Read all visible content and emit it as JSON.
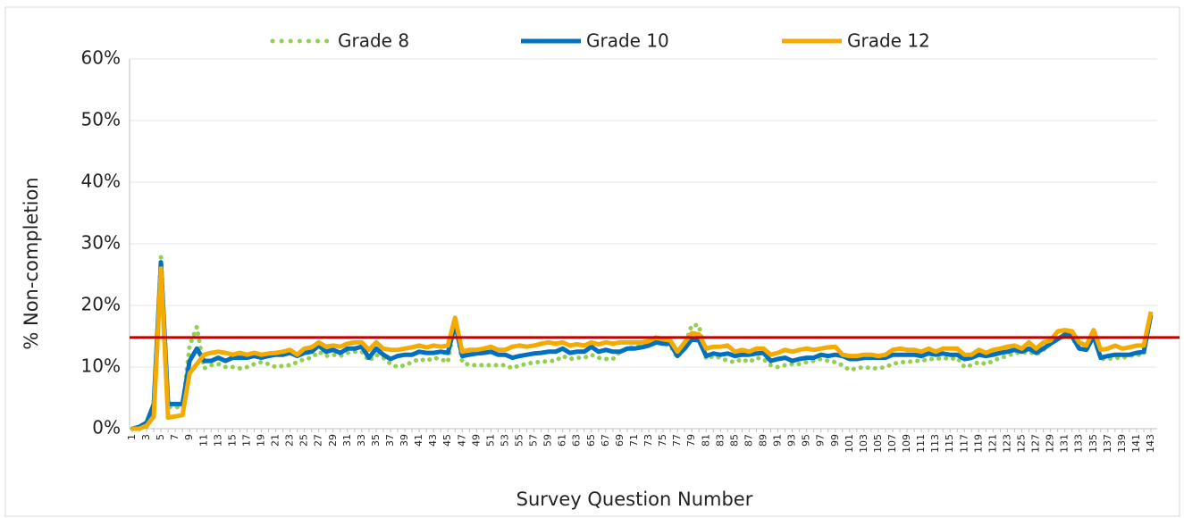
{
  "chart_data": {
    "type": "line",
    "x_label": "Survey Question Number",
    "y_label": "% Non-completion",
    "categories": [
      "1",
      null,
      "3",
      null,
      "5",
      null,
      "7",
      null,
      "9",
      null,
      "11",
      null,
      "13",
      null,
      "15",
      null,
      "17",
      null,
      "19",
      null,
      "21",
      null,
      "23",
      null,
      "25",
      null,
      "27",
      null,
      "29",
      null,
      "31",
      null,
      "33",
      null,
      "35",
      null,
      "37",
      null,
      "39",
      null,
      "41",
      null,
      "43",
      null,
      "45",
      null,
      "47",
      null,
      "49",
      null,
      "51",
      null,
      "53",
      null,
      "55",
      null,
      "57",
      null,
      "59",
      null,
      "61",
      null,
      "63",
      null,
      "65",
      null,
      "67",
      null,
      "69",
      null,
      "71",
      null,
      "73",
      null,
      "75",
      null,
      "77",
      null,
      "79",
      null,
      "81",
      null,
      "83",
      null,
      "85",
      null,
      "87",
      null,
      "89",
      null,
      "91",
      null,
      "93",
      null,
      "95",
      null,
      "97",
      null,
      "99",
      null,
      "101",
      null,
      "103",
      null,
      "105",
      null,
      "107",
      null,
      "109",
      null,
      "111",
      null,
      "113",
      null,
      "115",
      null,
      "117",
      null,
      "119",
      null,
      "121",
      null,
      "123",
      null,
      "125",
      null,
      "127",
      null,
      "129",
      null,
      "131",
      null,
      "133",
      null,
      "135",
      null,
      "137",
      null,
      "139",
      null,
      "141",
      null,
      "143"
    ],
    "series": [
      {
        "name": "Grade 8",
        "color": "#92d050",
        "dash": "dotted",
        "values": [
          0,
          0,
          0.3,
          3,
          28,
          3.5,
          3.5,
          3.5,
          13.5,
          16.5,
          9.8,
          10.3,
          10.5,
          10,
          10,
          9.8,
          10,
          10.5,
          10.8,
          10.5,
          10,
          10.2,
          10.3,
          10.8,
          11.3,
          11.5,
          12.5,
          11.8,
          12,
          11.8,
          12.3,
          12.5,
          12.5,
          11,
          12,
          11.5,
          10.5,
          10,
          10.3,
          10.8,
          11.3,
          11,
          11.5,
          11.3,
          10.8,
          17.5,
          10.8,
          10.3,
          10.3,
          10.3,
          10.3,
          10.3,
          10.3,
          9.8,
          10.3,
          10.5,
          10.8,
          10.8,
          11,
          11,
          11.8,
          11.3,
          11.5,
          11.5,
          12,
          11.5,
          11.3,
          11.3,
          12.5,
          13,
          13.3,
          13.5,
          13.5,
          14,
          13.8,
          13.5,
          11.5,
          13.5,
          16.8,
          16.8,
          11.3,
          11.8,
          11.5,
          11,
          10.8,
          11.3,
          10.8,
          11.5,
          11.3,
          10.3,
          10,
          10.3,
          10.5,
          10.5,
          10.8,
          11,
          11.3,
          11,
          10.8,
          10.3,
          9.5,
          9.8,
          10,
          9.8,
          9.8,
          10,
          10.5,
          10.8,
          10.8,
          11,
          11,
          11.3,
          11.3,
          11.5,
          11.3,
          11.5,
          10,
          10.3,
          10.8,
          10.5,
          11,
          11.5,
          11.8,
          12.3,
          12.3,
          12.5,
          12,
          12.8,
          13.8,
          14.5,
          15,
          14.8,
          13,
          12.8,
          15,
          11.3,
          11.3,
          11.5,
          11.5,
          11.8,
          12,
          12,
          18.5
        ]
      },
      {
        "name": "Grade 10",
        "color": "#0070c0",
        "dash": "solid",
        "values": [
          0,
          0.3,
          1,
          4,
          27,
          4,
          4,
          4,
          11,
          13,
          11,
          11,
          11.5,
          11,
          11.5,
          11.5,
          11.5,
          11.8,
          11.5,
          11.8,
          12,
          12,
          12.3,
          11.8,
          12.3,
          12.5,
          13.5,
          12.5,
          12.8,
          12.3,
          13,
          13,
          13.3,
          11.5,
          13,
          12,
          11.3,
          11.8,
          12,
          12,
          12.5,
          12.3,
          12.3,
          12.5,
          12.3,
          17,
          11.8,
          12,
          12.2,
          12.3,
          12.5,
          12,
          12,
          11.5,
          11.8,
          12,
          12.2,
          12.3,
          12.5,
          12.5,
          13,
          12.3,
          12.5,
          12.5,
          13.3,
          12.5,
          12.8,
          12.5,
          12.5,
          13,
          13,
          13.2,
          13.5,
          14,
          13.8,
          13.8,
          11.8,
          13,
          14.5,
          14.3,
          11.8,
          12.2,
          12,
          12.2,
          11.8,
          12,
          12,
          12.2,
          12.3,
          11,
          11.3,
          11.5,
          11,
          11.3,
          11.5,
          11.5,
          12,
          11.8,
          12,
          11.8,
          11.3,
          11.3,
          11.5,
          11.5,
          11.5,
          11.5,
          12,
          12,
          12,
          12,
          11.8,
          12.2,
          12,
          12.2,
          12,
          12,
          11.3,
          11.5,
          12,
          11.8,
          12,
          12.3,
          12.5,
          12.8,
          12.5,
          13,
          12.3,
          13,
          13.8,
          14.5,
          15.3,
          15,
          13,
          12.8,
          15,
          11.5,
          11.8,
          12,
          12,
          12,
          12.3,
          12.5,
          18.5
        ]
      },
      {
        "name": "Grade 12",
        "color": "#f5aa00",
        "dash": "solid",
        "values": [
          0,
          0,
          0.5,
          2,
          26,
          1.8,
          2,
          2.2,
          9,
          10.5,
          12,
          12.3,
          12.5,
          12.3,
          12,
          12.3,
          12,
          12.3,
          12,
          12.2,
          12.3,
          12.5,
          12.8,
          12,
          13,
          13.2,
          14,
          13.3,
          13.5,
          13.3,
          13.8,
          14,
          14,
          12.8,
          14,
          13,
          12.8,
          12.8,
          13,
          13.2,
          13.5,
          13.2,
          13.5,
          13.3,
          13.5,
          18,
          12.5,
          12.8,
          12.8,
          13,
          13.3,
          12.8,
          12.8,
          13.3,
          13.5,
          13.3,
          13.5,
          13.8,
          14,
          13.8,
          14,
          13.5,
          13.7,
          13.5,
          14,
          13.7,
          14,
          13.8,
          14,
          14,
          14,
          14,
          14.2,
          14.8,
          14.5,
          14.3,
          12.5,
          14,
          15.5,
          15.3,
          13,
          13.3,
          13.3,
          13.5,
          12.5,
          12.8,
          12.5,
          13,
          13,
          12,
          12.3,
          12.8,
          12.5,
          12.8,
          13,
          12.8,
          13,
          13.2,
          13.3,
          12,
          11.8,
          11.8,
          12,
          12,
          11.8,
          12,
          12.8,
          13,
          12.8,
          12.8,
          12.5,
          13,
          12.5,
          13,
          13,
          13,
          12,
          12,
          12.8,
          12.3,
          12.8,
          13,
          13.3,
          13.5,
          13,
          14,
          13,
          14,
          14.3,
          15.8,
          16,
          15.8,
          14,
          13.5,
          16,
          12.8,
          13,
          13.5,
          13,
          13.2,
          13.5,
          13.5,
          19
        ]
      }
    ],
    "reference_line": {
      "value": 14.8,
      "color": "#c00000"
    },
    "ylim": [
      0,
      60
    ],
    "yticks": [
      {
        "value": 0,
        "label": "0%"
      },
      {
        "value": 10,
        "label": "10%"
      },
      {
        "value": 20,
        "label": "20%"
      },
      {
        "value": 30,
        "label": "30%"
      },
      {
        "value": 40,
        "label": "40%"
      },
      {
        "value": 50,
        "label": "50%"
      },
      {
        "value": 60,
        "label": "60%"
      }
    ],
    "grid": true,
    "legend": "top"
  }
}
